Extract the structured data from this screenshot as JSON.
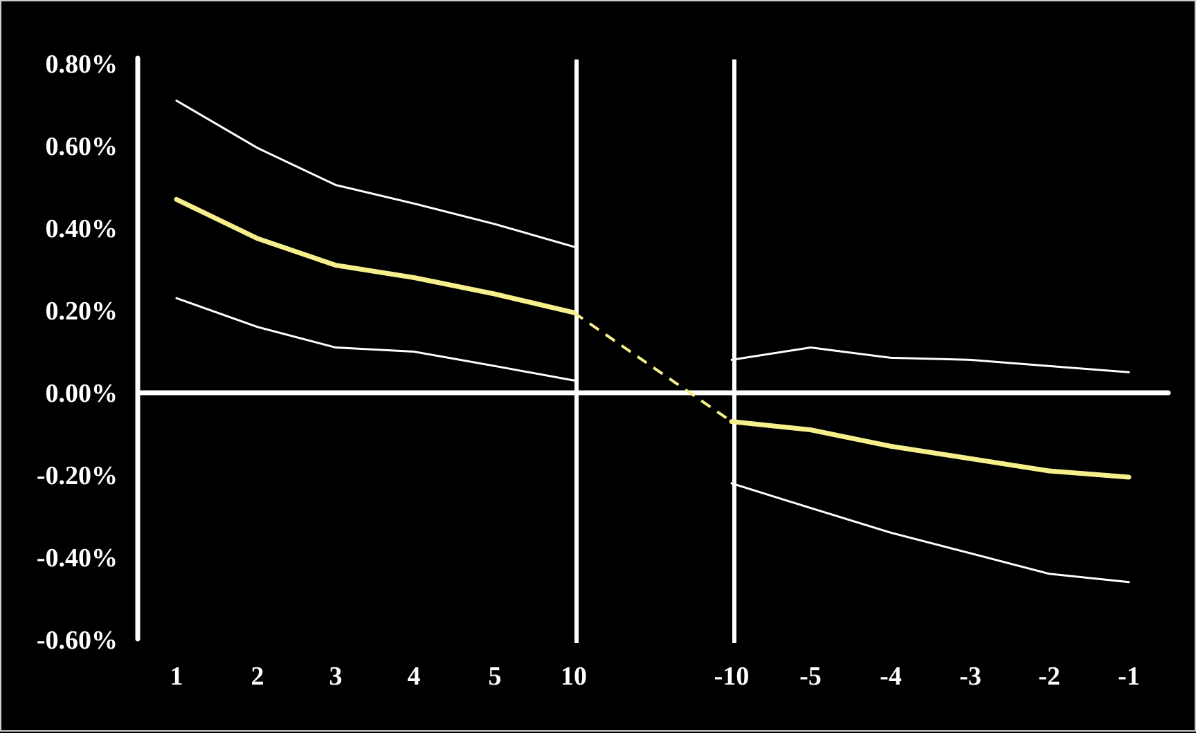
{
  "chart_data": {
    "type": "line",
    "title": "",
    "xlabel": "",
    "ylabel": "",
    "ylim": [
      -0.6,
      0.8
    ],
    "y_ticks": [
      "0.80%",
      "0.60%",
      "0.40%",
      "0.20%",
      "0.00%",
      "-0.20%",
      "-0.40%",
      "-0.60%"
    ],
    "y_tick_values": [
      0.8,
      0.6,
      0.4,
      0.2,
      0.0,
      -0.2,
      -0.4,
      -0.6
    ],
    "categories": [
      "1",
      "2",
      "3",
      "4",
      "5",
      "10",
      "-10",
      "-5",
      "-4",
      "-3",
      "-2",
      "-1"
    ],
    "grid": false,
    "legend": "none",
    "series": [
      {
        "role": "estimate",
        "color": "#f6f08c",
        "values": [
          0.47,
          0.375,
          0.31,
          0.28,
          0.24,
          0.195,
          -0.07,
          -0.09,
          -0.13,
          -0.16,
          -0.19,
          -0.205
        ]
      },
      {
        "role": "upper-bound",
        "color": "#ffffff",
        "values": [
          0.71,
          0.595,
          0.505,
          0.46,
          0.41,
          0.355,
          0.08,
          0.11,
          0.085,
          0.08,
          0.065,
          0.05
        ]
      },
      {
        "role": "lower-bound",
        "color": "#ffffff",
        "values": [
          0.23,
          0.16,
          0.11,
          0.1,
          0.065,
          0.03,
          -0.22,
          -0.28,
          -0.34,
          -0.39,
          -0.44,
          -0.46
        ]
      }
    ],
    "dashed_connector": {
      "from": "10",
      "to": "-10",
      "series": "estimate"
    },
    "vertical_separators_at": [
      "10",
      "-10"
    ]
  }
}
